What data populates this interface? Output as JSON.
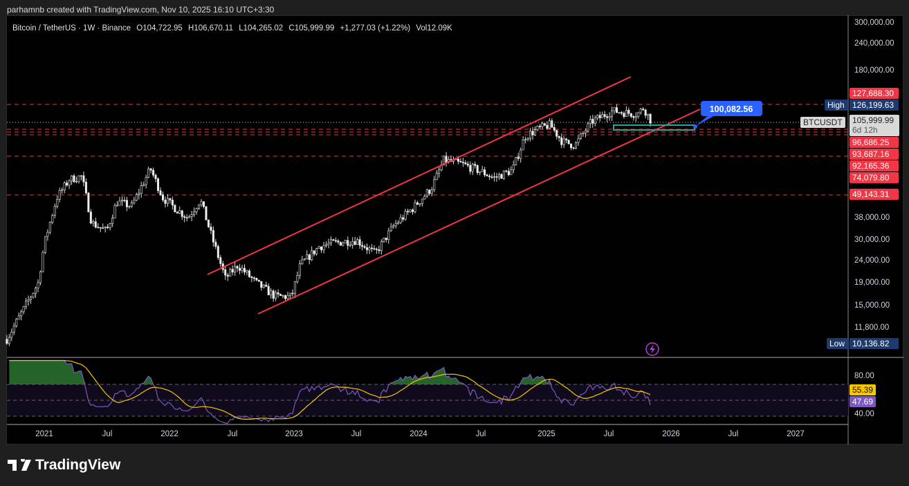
{
  "credit": "parhamnb created with TradingView.com, Nov 10, 2025 16:10 UTC+3:30",
  "legend": {
    "symbol": "Bitcoin / TetherUS · 1W · Binance",
    "open": "O104,722.95",
    "high": "H106,670.11",
    "low": "L104,265.02",
    "close": "C105,999.99",
    "change": "+1,277.03 (+1.22%)",
    "volume": "Vol12.09K"
  },
  "price_axis": [
    "300,000.00",
    "240,000.00",
    "180,000.00",
    "38,000.00",
    "30,000.00",
    "24,000.00",
    "19,000.00",
    "15,000.00",
    "11,800.00"
  ],
  "price_labels": {
    "l1": "127,688.30",
    "high_tag": "High",
    "high": "126,199.63",
    "symbol_tag": "BTCUSDT",
    "last": "105,999.99",
    "countdown": "6d 12h",
    "l2": "96,686.25",
    "l3": "93,687.16",
    "l4": "92,165.36",
    "l5": "74,079.80",
    "l6": "49,143.31",
    "low_tag": "Low",
    "low": "10,136.82"
  },
  "callout": "100,082.56",
  "rsi_axis": [
    "80.00",
    "40.00"
  ],
  "rsi_labels": {
    "sma": "55.39",
    "rsi": "47.69"
  },
  "time_axis": [
    "2021",
    "Jul",
    "2022",
    "Jul",
    "2023",
    "Jul",
    "2024",
    "Jul",
    "2025",
    "Jul",
    "2026",
    "Jul",
    "2027"
  ],
  "logo": "TradingView",
  "colors": {
    "channel": "#f23645",
    "zone": "#26a69a",
    "callout": "#2962ff",
    "rsi": "#7e57c2",
    "rsi_ma": "#f7c600"
  },
  "chart_data": {
    "type": "candlestick",
    "scale": "log",
    "interval": "1W",
    "approx_close_path": [
      [
        2020.7,
        10500
      ],
      [
        2020.85,
        15000
      ],
      [
        2020.95,
        19000
      ],
      [
        2021.0,
        29000
      ],
      [
        2021.1,
        47000
      ],
      [
        2021.2,
        57000
      ],
      [
        2021.3,
        59000
      ],
      [
        2021.38,
        36000
      ],
      [
        2021.5,
        33000
      ],
      [
        2021.58,
        45000
      ],
      [
        2021.7,
        43000
      ],
      [
        2021.85,
        64000
      ],
      [
        2021.95,
        47000
      ],
      [
        2022.05,
        42000
      ],
      [
        2022.15,
        38000
      ],
      [
        2022.25,
        46000
      ],
      [
        2022.35,
        30000
      ],
      [
        2022.45,
        20000
      ],
      [
        2022.55,
        23000
      ],
      [
        2022.7,
        19000
      ],
      [
        2022.85,
        16500
      ],
      [
        2022.98,
        16500
      ],
      [
        2023.05,
        23000
      ],
      [
        2023.2,
        28000
      ],
      [
        2023.3,
        29000
      ],
      [
        2023.5,
        30000
      ],
      [
        2023.65,
        26000
      ],
      [
        2023.8,
        35000
      ],
      [
        2023.95,
        42000
      ],
      [
        2024.1,
        52000
      ],
      [
        2024.2,
        70000
      ],
      [
        2024.35,
        67000
      ],
      [
        2024.5,
        62000
      ],
      [
        2024.6,
        58000
      ],
      [
        2024.75,
        63000
      ],
      [
        2024.85,
        90000
      ],
      [
        2024.95,
        97000
      ],
      [
        2025.05,
        102000
      ],
      [
        2025.15,
        85000
      ],
      [
        2025.25,
        82000
      ],
      [
        2025.38,
        105000
      ],
      [
        2025.55,
        118000
      ],
      [
        2025.75,
        114000
      ],
      [
        2025.8,
        122000
      ],
      [
        2025.86,
        106000
      ]
    ],
    "horizontal_levels": [
      127688.3,
      126199.63,
      96686.25,
      93687.16,
      92165.36,
      74079.8,
      49143.31
    ],
    "indicator": {
      "type": "RSI",
      "levels": [
        70,
        50,
        30
      ],
      "last_rsi": 47.69,
      "last_ma": 55.39
    }
  }
}
